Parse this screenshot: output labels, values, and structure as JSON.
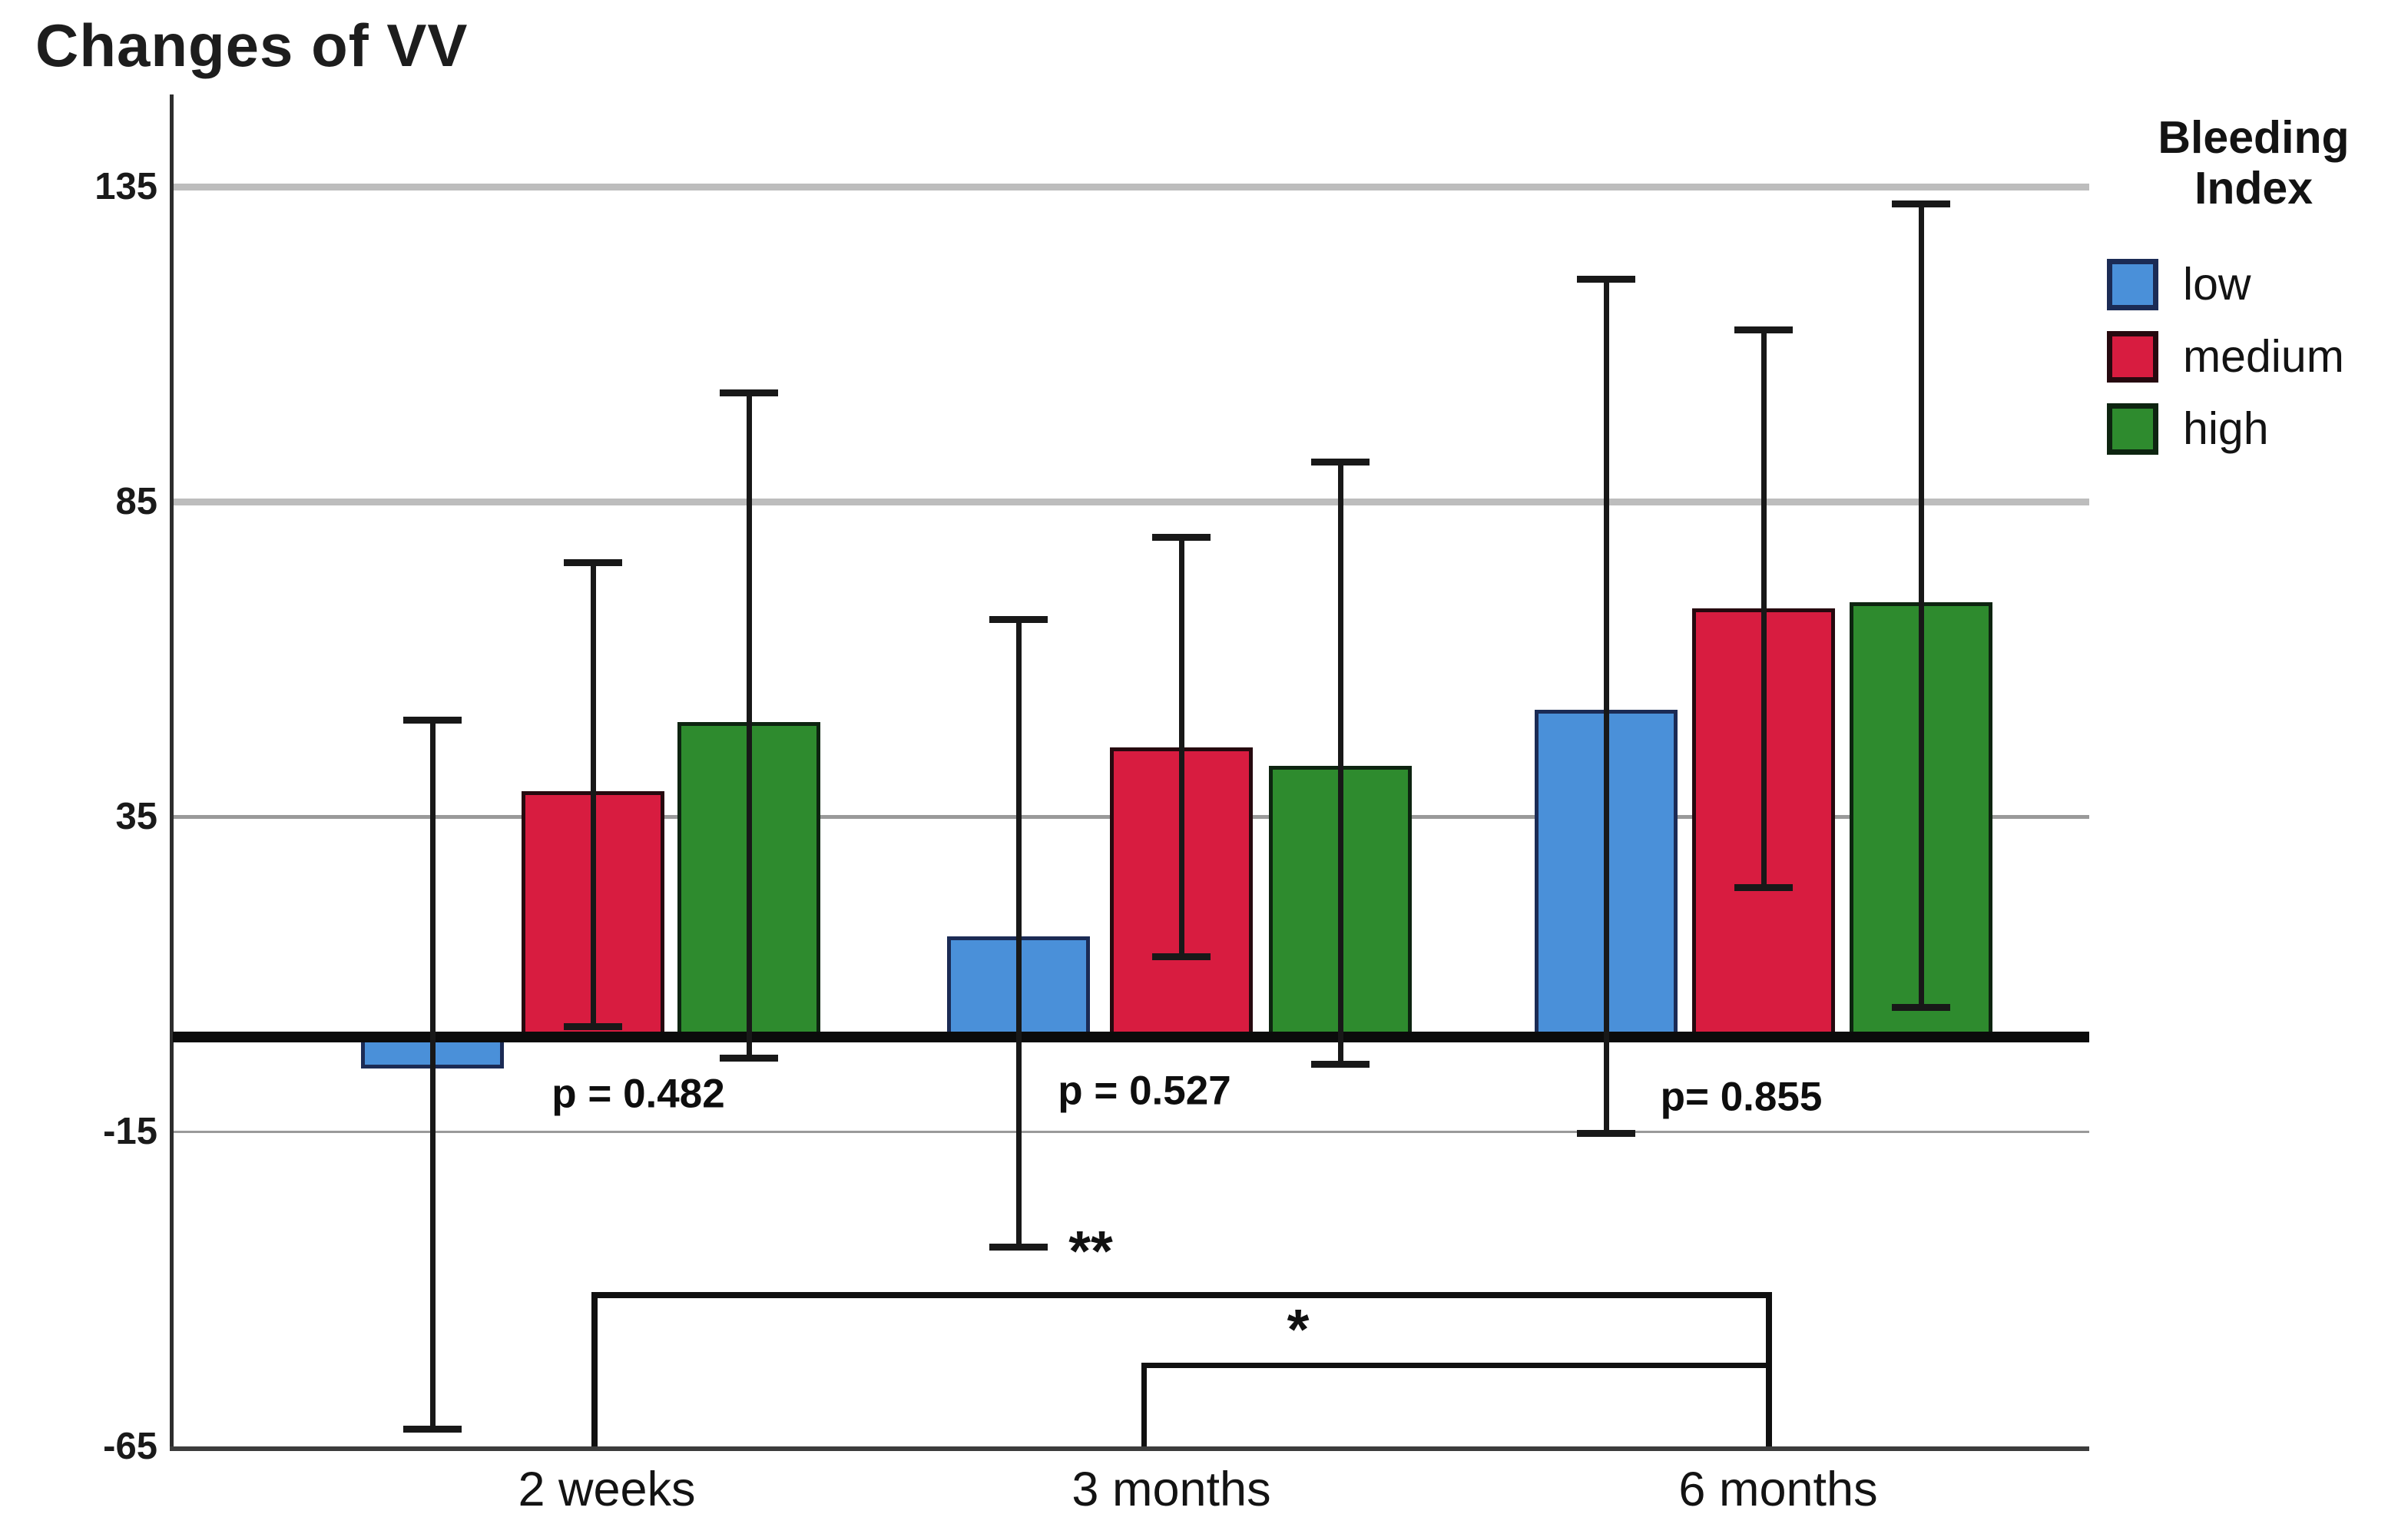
{
  "title": "Changes of VV",
  "legend": {
    "title": [
      "Bleeding",
      "Index"
    ],
    "items": [
      {
        "label": "low",
        "fill": "#4A90D9",
        "border": "#1B2B55"
      },
      {
        "label": "medium",
        "fill": "#D81C40",
        "border": "#26090F"
      },
      {
        "label": "high",
        "fill": "#2E8B2E",
        "border": "#0D2410"
      }
    ]
  },
  "chart_data": {
    "type": "bar",
    "title": "Changes of VV",
    "xlabel": "",
    "ylabel": "",
    "categories": [
      "2 weeks",
      "3 months",
      "6 months"
    ],
    "yticks": [
      "135",
      "85",
      "35",
      "-15",
      "-65"
    ],
    "ylim": [
      -65,
      160
    ],
    "grid": "horizontal",
    "legend_position": "right",
    "legend_title": "Bleeding Index",
    "series": [
      {
        "name": "low",
        "values": [
          -5,
          16,
          52
        ],
        "ci_low": [
          -62,
          -33,
          -15
        ],
        "ci_high": [
          50,
          66,
          120
        ]
      },
      {
        "name": "medium",
        "values": [
          39,
          46,
          68
        ],
        "ci_low": [
          2,
          13,
          24
        ],
        "ci_high": [
          75,
          79,
          112
        ]
      },
      {
        "name": "high",
        "values": [
          50,
          43,
          69
        ],
        "ci_low": [
          -3,
          -4,
          5
        ],
        "ci_high": [
          102,
          91,
          132
        ]
      }
    ],
    "p_values": [
      "p = 0.482",
      "p = 0.527",
      "p= 0.855"
    ],
    "significance": [
      {
        "label": "**",
        "from": "2 weeks",
        "to": "6 months"
      },
      {
        "label": "*",
        "from": "3 months",
        "to": "6 months"
      }
    ],
    "zero_baseline": true
  }
}
